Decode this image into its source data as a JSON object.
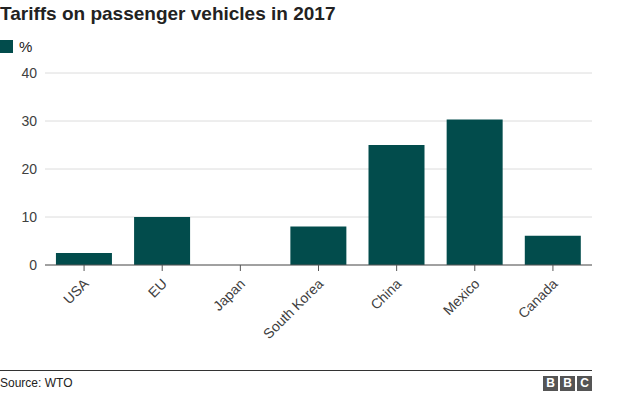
{
  "chart_data": {
    "type": "bar",
    "title": "Tariffs on passenger vehicles in 2017",
    "categories": [
      "USA",
      "EU",
      "Japan",
      "South Korea",
      "China",
      "Mexico",
      "Canada"
    ],
    "series": [
      {
        "name": "%",
        "color": "#024c4c",
        "values": [
          2.5,
          10,
          0,
          8,
          25,
          30.3,
          6.1
        ]
      }
    ],
    "ylim": [
      0,
      40
    ],
    "yticks": [
      0,
      10,
      20,
      30,
      40
    ],
    "grid": true,
    "legend": "top left",
    "source": "Source: WTO",
    "logo": "BBC"
  }
}
